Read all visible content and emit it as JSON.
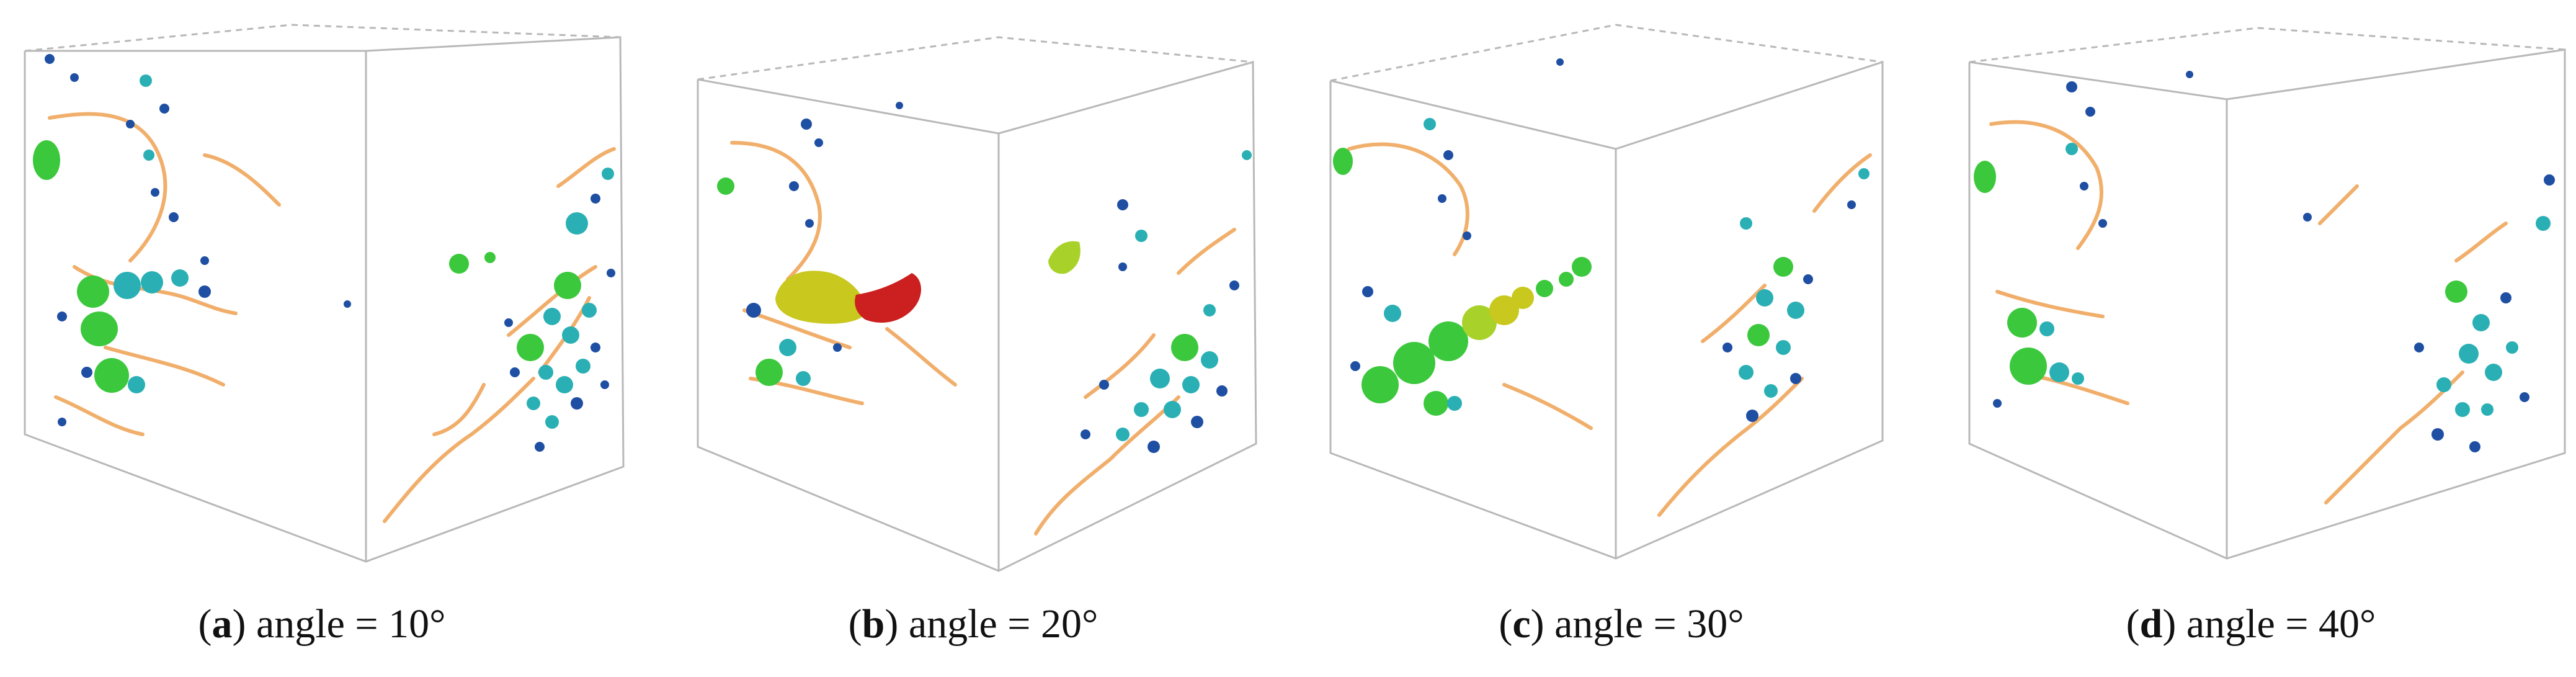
{
  "figure": {
    "panels": [
      {
        "id": "a",
        "letter": "a",
        "label": " angle = 10°"
      },
      {
        "id": "b",
        "letter": "b",
        "label": " angle = 20°"
      },
      {
        "id": "c",
        "letter": "c",
        "label": " angle = 30°"
      },
      {
        "id": "d",
        "letter": "d",
        "label": " angle = 40°"
      }
    ],
    "colors": {
      "box_edge": "#b8b8b8",
      "ligament": "#f0a65c",
      "pore_small": "#1f4fa3",
      "pore_medium": "#2ab0b4",
      "pore_large": "#3cc83c",
      "pore_yellow": "#c8c81e",
      "pore_red": "#cc1f1f"
    }
  }
}
